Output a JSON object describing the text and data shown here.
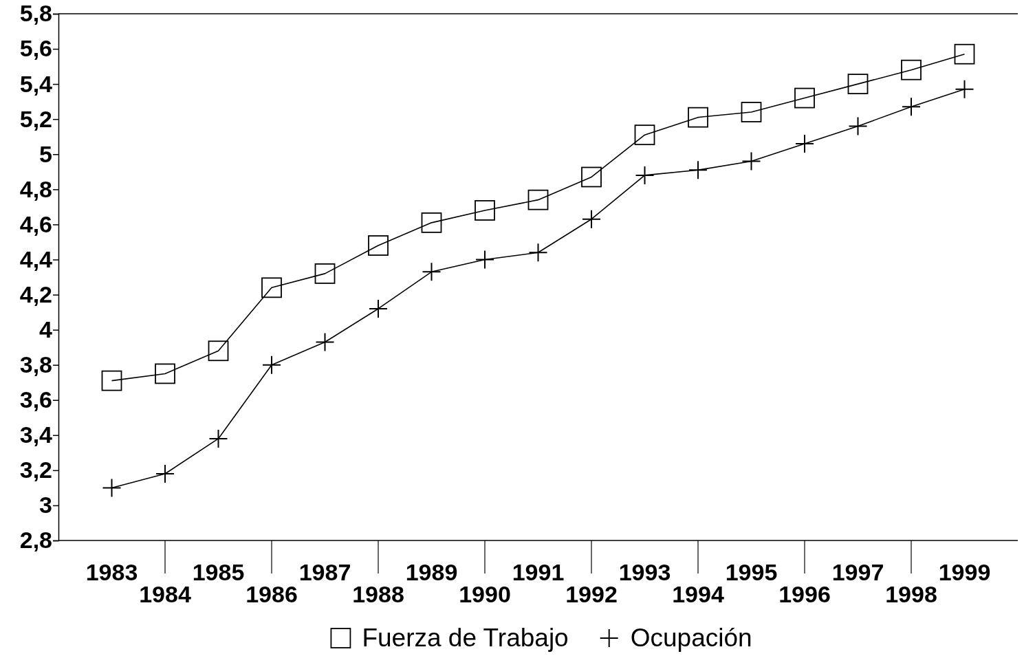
{
  "chart_data": {
    "type": "line",
    "categories": [
      "1983",
      "1984",
      "1985",
      "1986",
      "1987",
      "1988",
      "1989",
      "1990",
      "1991",
      "1992",
      "1993",
      "1994",
      "1995",
      "1996",
      "1997",
      "1998",
      "1999"
    ],
    "series": [
      {
        "name": "Fuerza de Trabajo",
        "color": "#000000",
        "marker": "square",
        "values": [
          3.71,
          3.75,
          3.88,
          4.24,
          4.32,
          4.48,
          4.61,
          4.68,
          4.74,
          4.87,
          5.11,
          5.21,
          5.24,
          5.32,
          5.4,
          5.48,
          5.57
        ]
      },
      {
        "name": "Ocupación",
        "color": "#000000",
        "marker": "cross",
        "values": [
          3.1,
          3.18,
          3.38,
          3.8,
          3.93,
          4.12,
          4.33,
          4.4,
          4.44,
          4.63,
          4.88,
          4.91,
          4.96,
          5.06,
          5.16,
          5.27,
          5.37
        ]
      }
    ],
    "ylim": [
      2.8,
      5.8
    ],
    "yticks": [
      {
        "value": 2.8,
        "label": "2,8"
      },
      3,
      {
        "value": 3.2,
        "label": "3,2"
      },
      {
        "value": 3.4,
        "label": "3,4"
      },
      {
        "value": 3.6,
        "label": "3,6"
      },
      {
        "value": 3.8,
        "label": "3,8"
      },
      4,
      {
        "value": 4.2,
        "label": "4,2"
      },
      {
        "value": 4.4,
        "label": "4,4"
      },
      {
        "value": 4.6,
        "label": "4,6"
      },
      {
        "value": 4.8,
        "label": "4,8"
      },
      5,
      {
        "value": 5.2,
        "label": "5,2"
      },
      {
        "value": 5.4,
        "label": "5,4"
      },
      {
        "value": 5.6,
        "label": "5,6"
      },
      {
        "value": 5.8,
        "label": "5,8"
      }
    ],
    "grid": false,
    "legend": "bottom",
    "line_style": "solid"
  }
}
